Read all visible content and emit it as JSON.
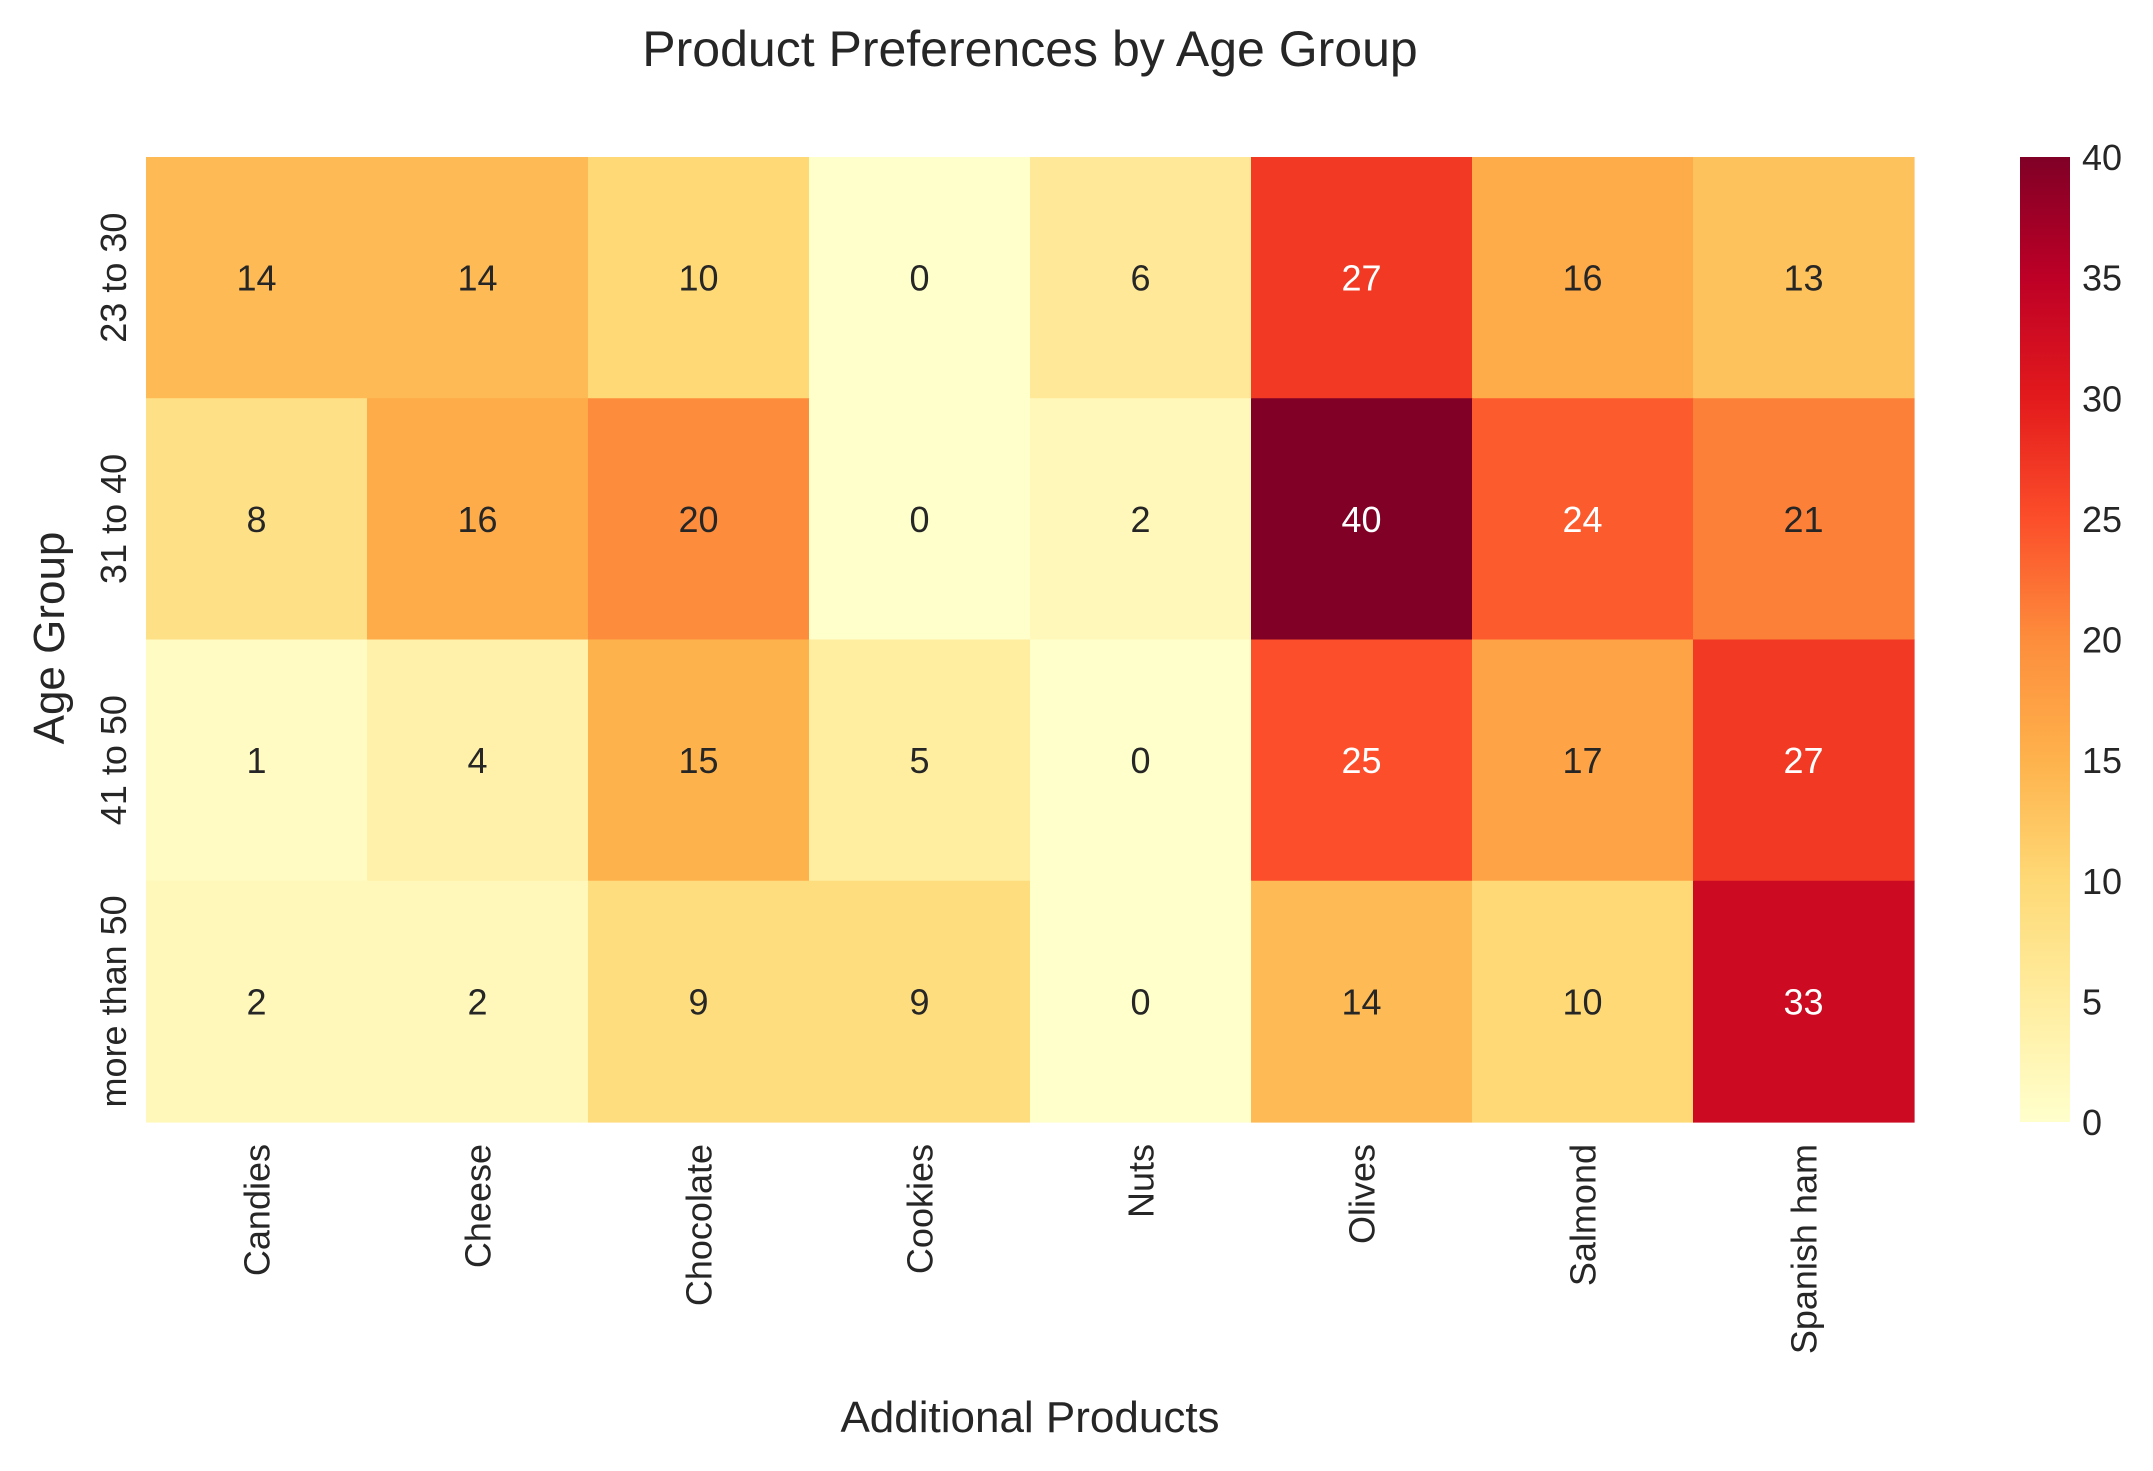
{
  "chart_data": {
    "type": "heatmap",
    "title": "Product Preferences by Age Group",
    "xlabel": "Additional Products",
    "ylabel": "Age Group",
    "x_categories": [
      "Candies",
      "Cheese",
      "Chocolate",
      "Cookies",
      "Nuts",
      "Olives",
      "Salmond",
      "Spanish ham"
    ],
    "y_categories": [
      "23 to 30",
      "31 to 40",
      "41 to 50",
      "more than 50"
    ],
    "values": [
      [
        14,
        14,
        10,
        0,
        6,
        27,
        16,
        13
      ],
      [
        8,
        16,
        20,
        0,
        2,
        40,
        24,
        21
      ],
      [
        1,
        4,
        15,
        5,
        0,
        25,
        17,
        27
      ],
      [
        2,
        2,
        9,
        9,
        0,
        14,
        10,
        33
      ]
    ],
    "colorbar": {
      "min": 0,
      "max": 40,
      "ticks": [
        0,
        5,
        10,
        15,
        20,
        25,
        30,
        35,
        40
      ],
      "colormap": "YlOrRd"
    },
    "annotations": true,
    "grid": false
  }
}
